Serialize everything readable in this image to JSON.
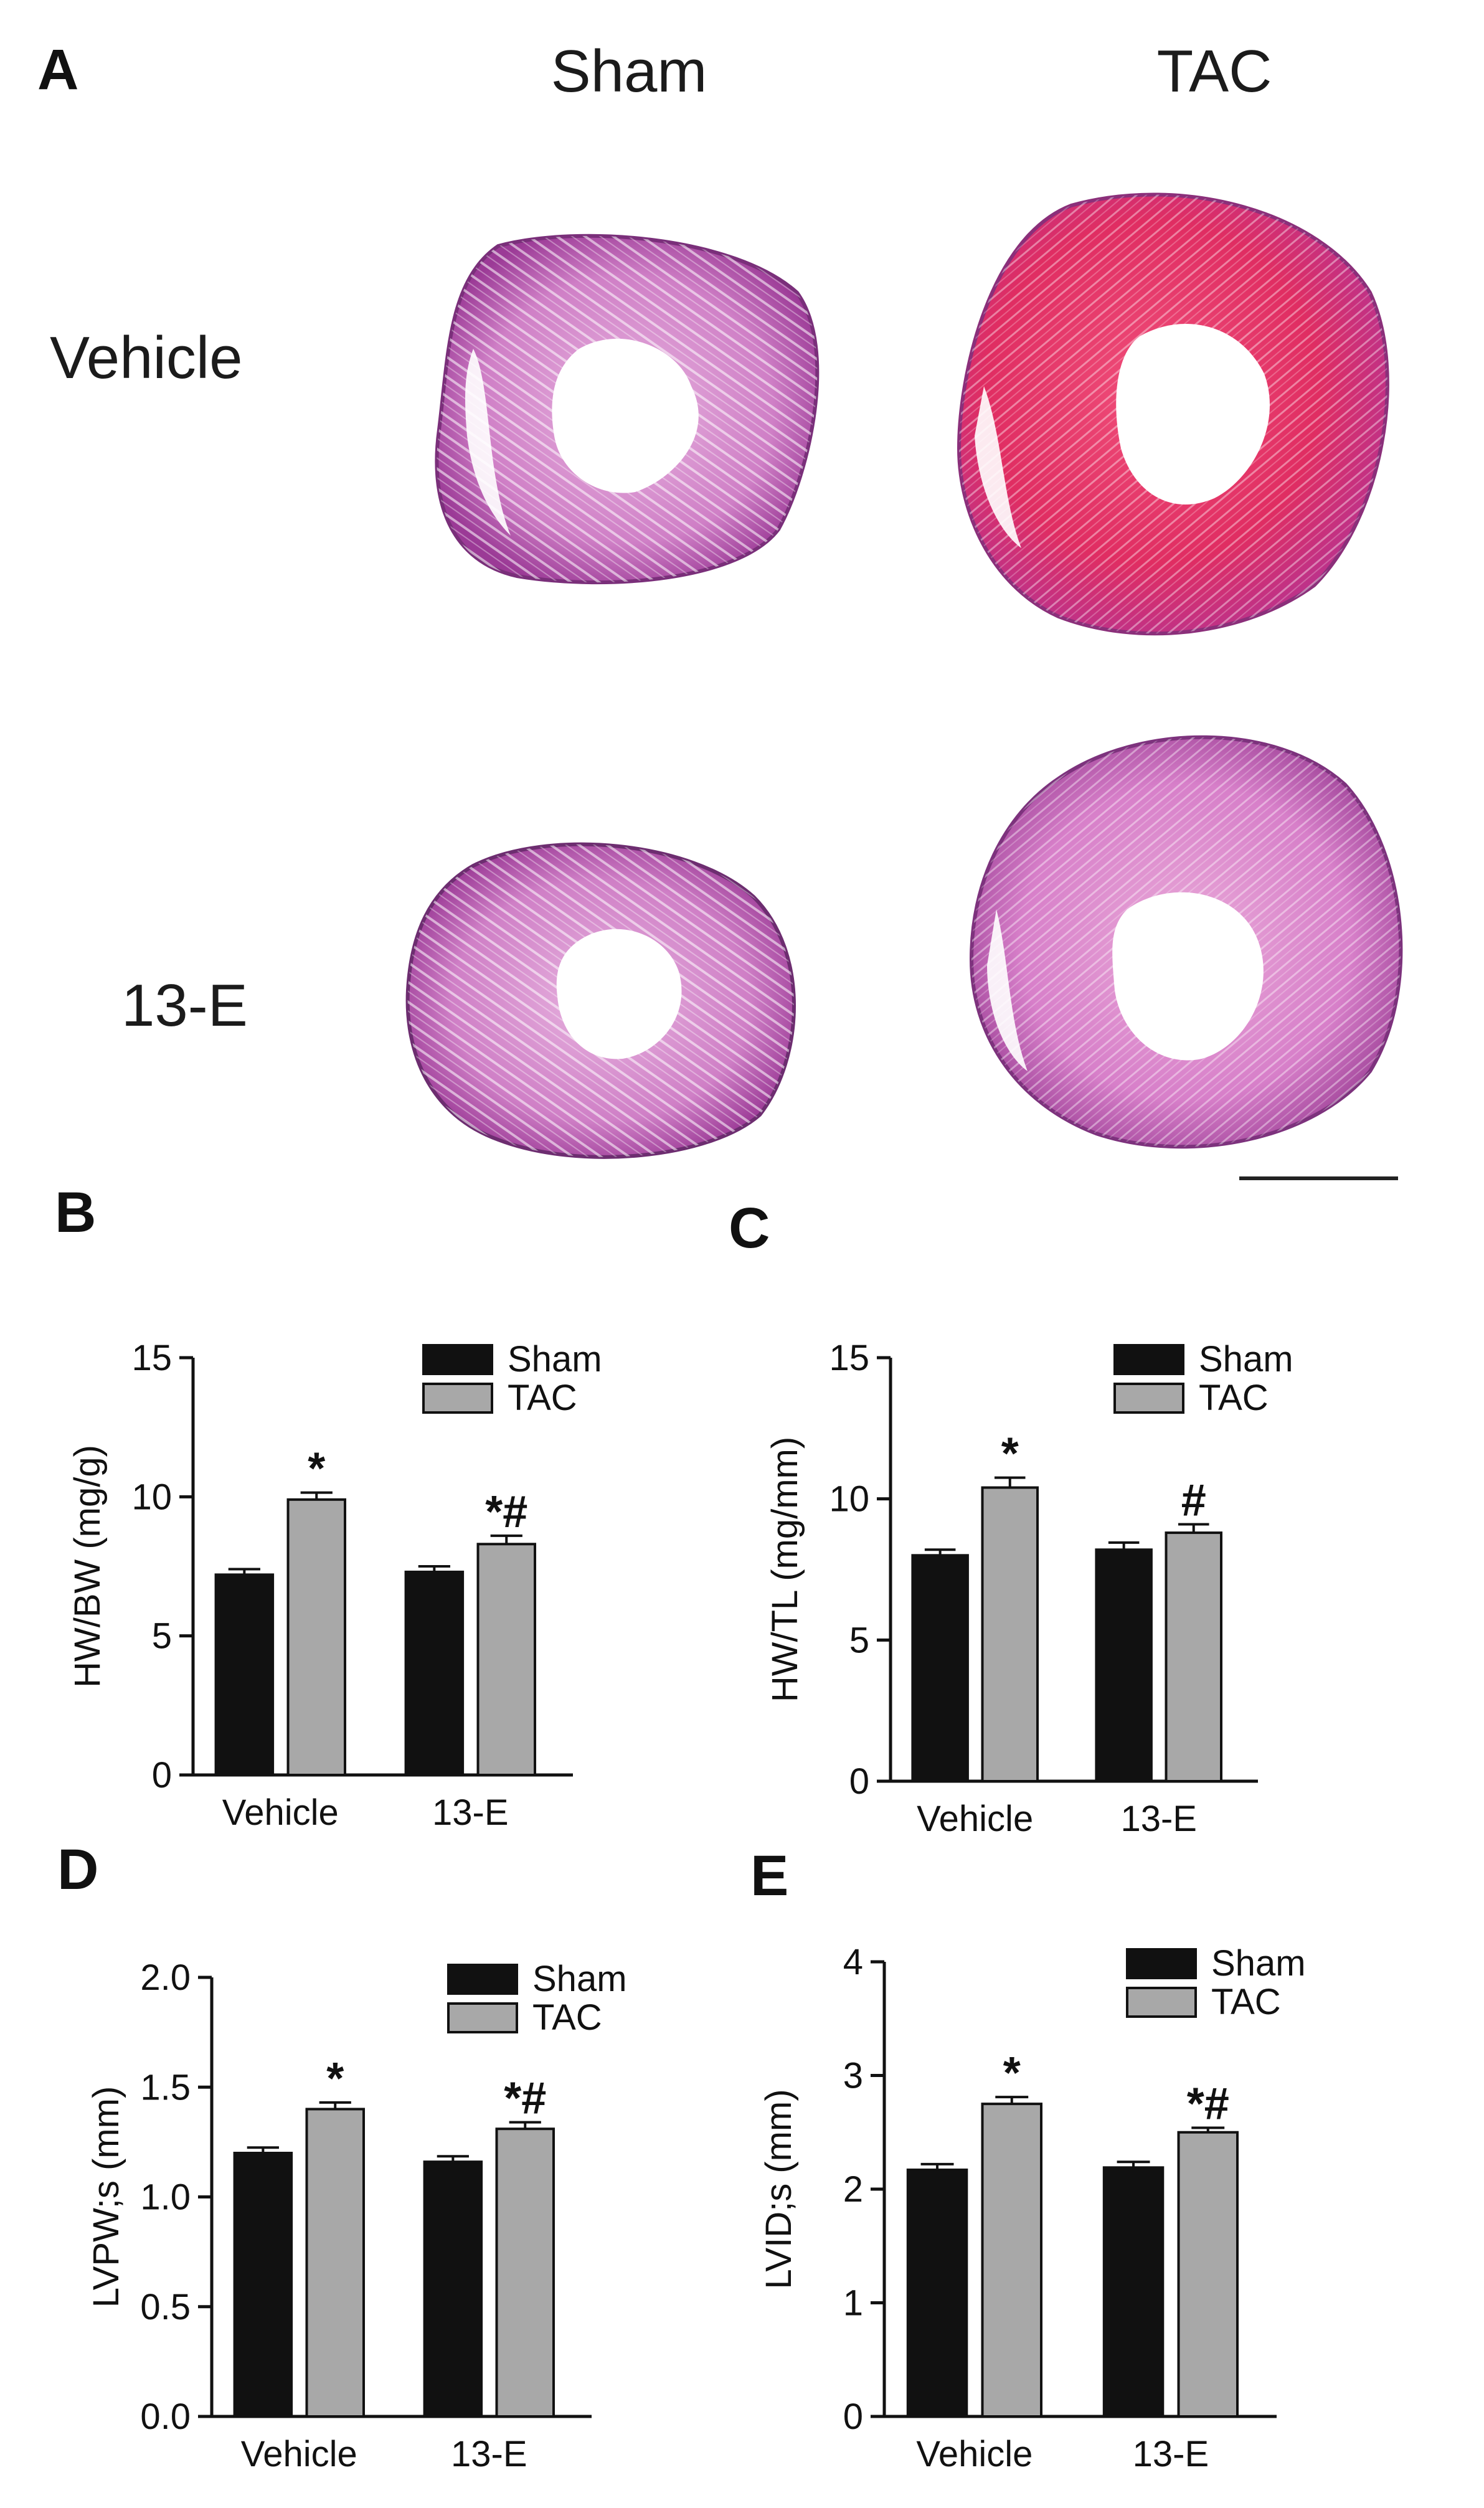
{
  "figure": {
    "panel_a": {
      "letter": "A",
      "columns": [
        "Sham",
        "TAC"
      ],
      "rows": [
        "Vehicle",
        "13-E"
      ],
      "image_desc_colors": {
        "tissue_light": "#d98fd0",
        "tissue_dark": "#b23aa8",
        "tissue_red": "#e0285e"
      }
    },
    "panel_letters": {
      "b": "B",
      "c": "C",
      "d": "D",
      "e": "E"
    }
  },
  "chart_data": [
    {
      "panel": "B",
      "type": "bar",
      "categories": [
        "Vehicle",
        "13-E"
      ],
      "series": [
        {
          "name": "Sham",
          "values": [
            7.2,
            7.3
          ],
          "errors": [
            0.2,
            0.2
          ],
          "color": "#111111",
          "marks": [
            "",
            ""
          ]
        },
        {
          "name": "TAC",
          "values": [
            9.9,
            8.3
          ],
          "errors": [
            0.25,
            0.3
          ],
          "color": "#a8a8a8",
          "marks": [
            "*",
            "*#"
          ]
        }
      ],
      "ylabel": "HW/BW (mg/g)",
      "ylim": [
        0,
        15
      ],
      "yticks": [
        "0",
        "5",
        "10",
        "15"
      ],
      "ytick_values": [
        0,
        5,
        10,
        15
      ],
      "legend": "top-right"
    },
    {
      "panel": "C",
      "type": "bar",
      "categories": [
        "Vehicle",
        "13-E"
      ],
      "series": [
        {
          "name": "Sham",
          "values": [
            8.0,
            8.2
          ],
          "errors": [
            0.2,
            0.25
          ],
          "color": "#111111",
          "marks": [
            "",
            ""
          ]
        },
        {
          "name": "TAC",
          "values": [
            10.4,
            8.8
          ],
          "errors": [
            0.35,
            0.3
          ],
          "color": "#a8a8a8",
          "marks": [
            "*",
            "#"
          ]
        }
      ],
      "ylabel": "HW/TL (mg/mm)",
      "ylim": [
        0,
        15
      ],
      "yticks": [
        "0",
        "5",
        "10",
        "15"
      ],
      "ytick_values": [
        0,
        5,
        10,
        15
      ],
      "legend": "top-right"
    },
    {
      "panel": "D",
      "type": "bar",
      "categories": [
        "Vehicle",
        "13-E"
      ],
      "series": [
        {
          "name": "Sham",
          "values": [
            1.2,
            1.16
          ],
          "errors": [
            0.025,
            0.025
          ],
          "color": "#111111",
          "marks": [
            "",
            ""
          ]
        },
        {
          "name": "TAC",
          "values": [
            1.4,
            1.31
          ],
          "errors": [
            0.03,
            0.03
          ],
          "color": "#a8a8a8",
          "marks": [
            "*",
            "*#"
          ]
        }
      ],
      "ylabel": "LVPW;s (mm)",
      "ylim": [
        0,
        2.0
      ],
      "yticks": [
        "0.0",
        "0.5",
        "1.0",
        "1.5",
        "2.0"
      ],
      "ytick_values": [
        0,
        0.5,
        1.0,
        1.5,
        2.0
      ],
      "legend": "top-right"
    },
    {
      "panel": "E",
      "type": "bar",
      "categories": [
        "Vehicle",
        "13-E"
      ],
      "series": [
        {
          "name": "Sham",
          "values": [
            2.17,
            2.19
          ],
          "errors": [
            0.05,
            0.05
          ],
          "color": "#111111",
          "marks": [
            "",
            ""
          ]
        },
        {
          "name": "TAC",
          "values": [
            2.75,
            2.5
          ],
          "errors": [
            0.06,
            0.04
          ],
          "color": "#a8a8a8",
          "marks": [
            "*",
            "*#"
          ]
        }
      ],
      "ylabel": "LVID;s (mm)",
      "ylim": [
        0,
        4
      ],
      "yticks": [
        "0",
        "1",
        "2",
        "3",
        "4"
      ],
      "ytick_values": [
        0,
        1,
        2,
        3,
        4
      ],
      "legend": "top-right"
    }
  ]
}
